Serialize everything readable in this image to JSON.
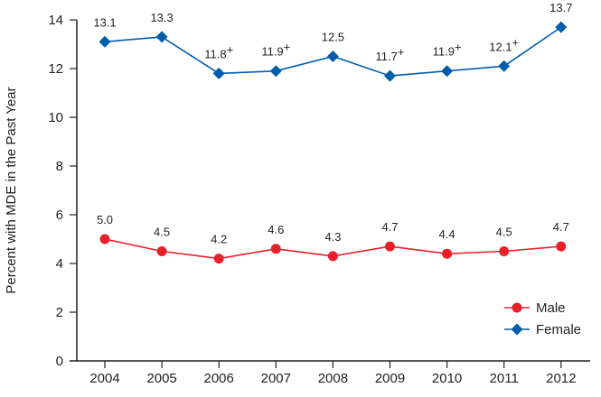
{
  "chart_data": {
    "type": "line",
    "title": "",
    "xlabel": "",
    "ylabel": "Percent with MDE in the Past Year",
    "categories": [
      "2004",
      "2005",
      "2006",
      "2007",
      "2008",
      "2009",
      "2010",
      "2011",
      "2012"
    ],
    "ylim": [
      0,
      14
    ],
    "yticks": [
      "0",
      "2",
      "4",
      "6",
      "8",
      "10",
      "12",
      "14"
    ],
    "grid": false,
    "legend_position": "bottom-right",
    "series": [
      {
        "name": "Male",
        "color": "#e8202a",
        "marker": "circle",
        "values": [
          5.0,
          4.5,
          4.2,
          4.6,
          4.3,
          4.7,
          4.4,
          4.5,
          4.7
        ],
        "labels": [
          "5.0",
          "4.5",
          "4.2",
          "4.6",
          "4.3",
          "4.7",
          "4.4",
          "4.5",
          "4.7"
        ],
        "label_marks": [
          "",
          "",
          "",
          "",
          "",
          "",
          "",
          "",
          ""
        ]
      },
      {
        "name": "Female",
        "color": "#005daa",
        "marker": "diamond",
        "values": [
          13.1,
          13.3,
          11.8,
          11.9,
          12.5,
          11.7,
          11.9,
          12.1,
          13.7
        ],
        "labels": [
          "13.1",
          "13.3",
          "11.8",
          "11.9",
          "12.5",
          "11.7",
          "11.9",
          "12.1",
          "13.7"
        ],
        "label_marks": [
          "",
          "",
          "+",
          "+",
          "",
          "+",
          "+",
          "+",
          ""
        ]
      }
    ]
  }
}
